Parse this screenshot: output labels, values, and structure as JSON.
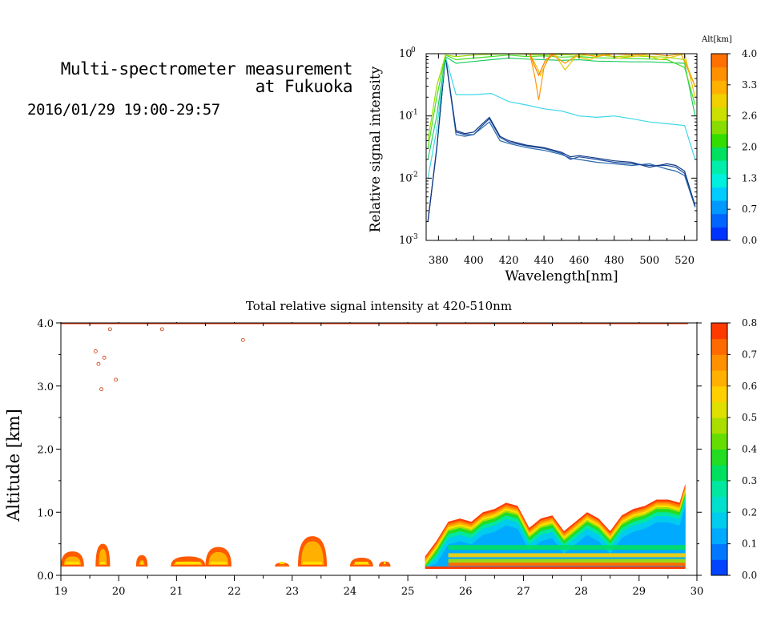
{
  "header": {
    "title_line1": "Multi-spectrometer measurement",
    "title_line2": "at Fukuoka",
    "date_range": "2016/01/29 19:00-29:57"
  },
  "chart_data": [
    {
      "type": "line",
      "xlabel": "Wavelength[nm]",
      "ylabel": "Relative signal intensity",
      "xlim": [
        373,
        527
      ],
      "ylim": [
        0.001,
        1
      ],
      "yscale": "log",
      "x_ticks": [
        "380",
        "400",
        "420",
        "440",
        "460",
        "480",
        "500",
        "520"
      ],
      "y_ticks": [
        "10^-3",
        "10^-2",
        "10^-1",
        "10^0"
      ],
      "y_tick_base": "10",
      "y_tick_exps": [
        "-3",
        "-2",
        "-1",
        "0"
      ],
      "colorbar": {
        "title": "Alt[km]",
        "labels": [
          "0.0",
          "0.7",
          "1.3",
          "2.0",
          "2.6",
          "3.3",
          "4.0"
        ],
        "colors": [
          "#0033ff",
          "#0066ff",
          "#0099ff",
          "#00ccff",
          "#00f0e0",
          "#00eeaa",
          "#00e060",
          "#33dd00",
          "#88dd00",
          "#cce000",
          "#f0d000",
          "#ffb000",
          "#ff9000",
          "#ff7000"
        ]
      },
      "series": [
        {
          "color": "#1a4aa0",
          "x": [
            374,
            379,
            384,
            390,
            395,
            400,
            405,
            409,
            415,
            420,
            430,
            440,
            450,
            455,
            460,
            470,
            480,
            490,
            500,
            510,
            515,
            520,
            526
          ],
          "y": [
            0.002,
            0.03,
            0.9,
            0.055,
            0.05,
            0.05,
            0.07,
            0.09,
            0.045,
            0.038,
            0.033,
            0.03,
            0.025,
            0.02,
            0.022,
            0.02,
            0.018,
            0.017,
            0.016,
            0.016,
            0.015,
            0.012,
            0.0035
          ]
        },
        {
          "color": "#2a6ab0",
          "x": [
            374,
            379,
            384,
            390,
            395,
            400,
            405,
            409,
            415,
            420,
            430,
            440,
            450,
            455,
            460,
            470,
            480,
            490,
            500,
            510,
            515,
            520,
            526
          ],
          "y": [
            0.002,
            0.03,
            0.9,
            0.05,
            0.047,
            0.05,
            0.065,
            0.08,
            0.04,
            0.036,
            0.031,
            0.028,
            0.024,
            0.021,
            0.02,
            0.018,
            0.017,
            0.016,
            0.017,
            0.014,
            0.013,
            0.011,
            0.0034
          ]
        },
        {
          "color": "#123a80",
          "x": [
            374,
            379,
            384,
            390,
            395,
            400,
            405,
            409,
            415,
            420,
            430,
            440,
            450,
            455,
            460,
            470,
            480,
            490,
            500,
            510,
            515,
            520,
            526
          ],
          "y": [
            0.002,
            0.03,
            0.9,
            0.058,
            0.052,
            0.055,
            0.075,
            0.095,
            0.047,
            0.04,
            0.034,
            0.031,
            0.026,
            0.022,
            0.023,
            0.021,
            0.019,
            0.018,
            0.015,
            0.017,
            0.016,
            0.013,
            0.0036
          ]
        },
        {
          "color": "#3fd8e8",
          "x": [
            374,
            379,
            384,
            390,
            400,
            410,
            420,
            430,
            440,
            450,
            460,
            470,
            480,
            490,
            500,
            510,
            520,
            526
          ],
          "y": [
            0.01,
            0.06,
            0.9,
            0.22,
            0.22,
            0.23,
            0.17,
            0.15,
            0.13,
            0.12,
            0.1,
            0.095,
            0.1,
            0.09,
            0.08,
            0.075,
            0.07,
            0.02
          ]
        },
        {
          "color": "#22cc66",
          "x": [
            374,
            379,
            384,
            390,
            400,
            410,
            420,
            430,
            440,
            450,
            460,
            470,
            480,
            490,
            500,
            510,
            520,
            526
          ],
          "y": [
            0.02,
            0.1,
            0.9,
            0.7,
            0.75,
            0.8,
            0.85,
            0.82,
            0.8,
            0.78,
            0.8,
            0.76,
            0.75,
            0.74,
            0.74,
            0.72,
            0.7,
            0.1
          ]
        },
        {
          "color": "#44dd22",
          "x": [
            374,
            379,
            384,
            390,
            400,
            410,
            420,
            430,
            440,
            450,
            460,
            470,
            480,
            490,
            500,
            510,
            520,
            526
          ],
          "y": [
            0.03,
            0.2,
            0.95,
            0.8,
            0.85,
            0.9,
            0.95,
            0.9,
            0.92,
            0.88,
            0.9,
            0.86,
            0.85,
            0.84,
            0.82,
            0.8,
            0.6,
            0.15
          ]
        },
        {
          "color": "#99dd00",
          "x": [
            374,
            379,
            384,
            390,
            400,
            410,
            420,
            430,
            440,
            450,
            460,
            470,
            480,
            490,
            500,
            510,
            520,
            526
          ],
          "y": [
            0.04,
            0.3,
            0.95,
            0.9,
            0.95,
            0.98,
            1.0,
            0.98,
            0.95,
            0.97,
            0.94,
            0.96,
            0.9,
            0.92,
            0.9,
            0.88,
            0.8,
            0.3
          ]
        },
        {
          "color": "#e8c400",
          "x": [
            432,
            436,
            438,
            442,
            446,
            452,
            458,
            466,
            474,
            482,
            490,
            498,
            506,
            514,
            520,
            526
          ],
          "y": [
            1.0,
            0.6,
            0.45,
            0.8,
            1.0,
            0.55,
            0.9,
            0.8,
            1.0,
            0.85,
            0.9,
            0.95,
            0.8,
            0.9,
            1.0,
            0.2
          ]
        },
        {
          "color": "#ff9a00",
          "x": [
            432,
            435,
            437,
            440,
            444,
            452,
            460,
            470,
            480,
            490,
            500,
            510,
            518,
            526
          ],
          "y": [
            1.0,
            0.4,
            0.18,
            0.6,
            1.0,
            0.7,
            1.0,
            0.9,
            1.0,
            0.95,
            1.0,
            0.92,
            1.0,
            0.3
          ]
        },
        {
          "color": "#ff7a00",
          "x": [
            432,
            434,
            437,
            441,
            446
          ],
          "y": [
            1.0,
            0.7,
            0.45,
            0.8,
            1.0
          ]
        }
      ]
    },
    {
      "type": "heatmap",
      "title": "Total relative signal intensity at 420-510nm",
      "xlabel": "",
      "ylabel": "Altitude [km]",
      "xlim": [
        19,
        30
      ],
      "ylim": [
        0,
        4
      ],
      "x_ticks": [
        "19",
        "20",
        "21",
        "22",
        "23",
        "24",
        "25",
        "26",
        "27",
        "28",
        "29",
        "30"
      ],
      "y_ticks": [
        "0.0",
        "1.0",
        "2.0",
        "3.0",
        "4.0"
      ],
      "colorbar": {
        "labels": [
          "0.0",
          "0.1",
          "0.2",
          "0.3",
          "0.4",
          "0.5",
          "0.6",
          "0.7",
          "0.8"
        ],
        "colors": [
          "#0044ff",
          "#0077ff",
          "#00aaff",
          "#00ccee",
          "#00e0cc",
          "#00e8a0",
          "#00e060",
          "#22dd22",
          "#66dd00",
          "#aadd00",
          "#dde000",
          "#ffd000",
          "#ffb000",
          "#ff9000",
          "#ff6a00",
          "#ff3a00"
        ]
      },
      "cloud_top": {
        "x": [
          25.3,
          25.5,
          25.7,
          25.9,
          26.1,
          26.3,
          26.5,
          26.7,
          26.9,
          27.1,
          27.3,
          27.5,
          27.7,
          27.9,
          28.1,
          28.3,
          28.5,
          28.7,
          28.9,
          29.1,
          29.3,
          29.5,
          29.7,
          29.8
        ],
        "y": [
          0.3,
          0.55,
          0.85,
          0.9,
          0.85,
          1.0,
          1.05,
          1.15,
          1.1,
          0.75,
          0.9,
          0.95,
          0.7,
          0.85,
          1.0,
          0.9,
          0.7,
          0.95,
          1.05,
          1.1,
          1.2,
          1.2,
          1.15,
          1.45
        ]
      },
      "low_patches": [
        {
          "x": [
            19.0,
            19.4
          ],
          "top": 0.38
        },
        {
          "x": [
            19.6,
            19.85
          ],
          "top": 0.5
        },
        {
          "x": [
            20.3,
            20.5
          ],
          "top": 0.32
        },
        {
          "x": [
            20.9,
            21.5
          ],
          "top": 0.3
        },
        {
          "x": [
            21.5,
            21.95
          ],
          "top": 0.45
        },
        {
          "x": [
            22.7,
            22.95
          ],
          "top": 0.2
        },
        {
          "x": [
            23.1,
            23.6
          ],
          "top": 0.62
        },
        {
          "x": [
            24.0,
            24.4
          ],
          "top": 0.28
        },
        {
          "x": [
            24.5,
            24.7
          ],
          "top": 0.22
        }
      ]
    }
  ]
}
